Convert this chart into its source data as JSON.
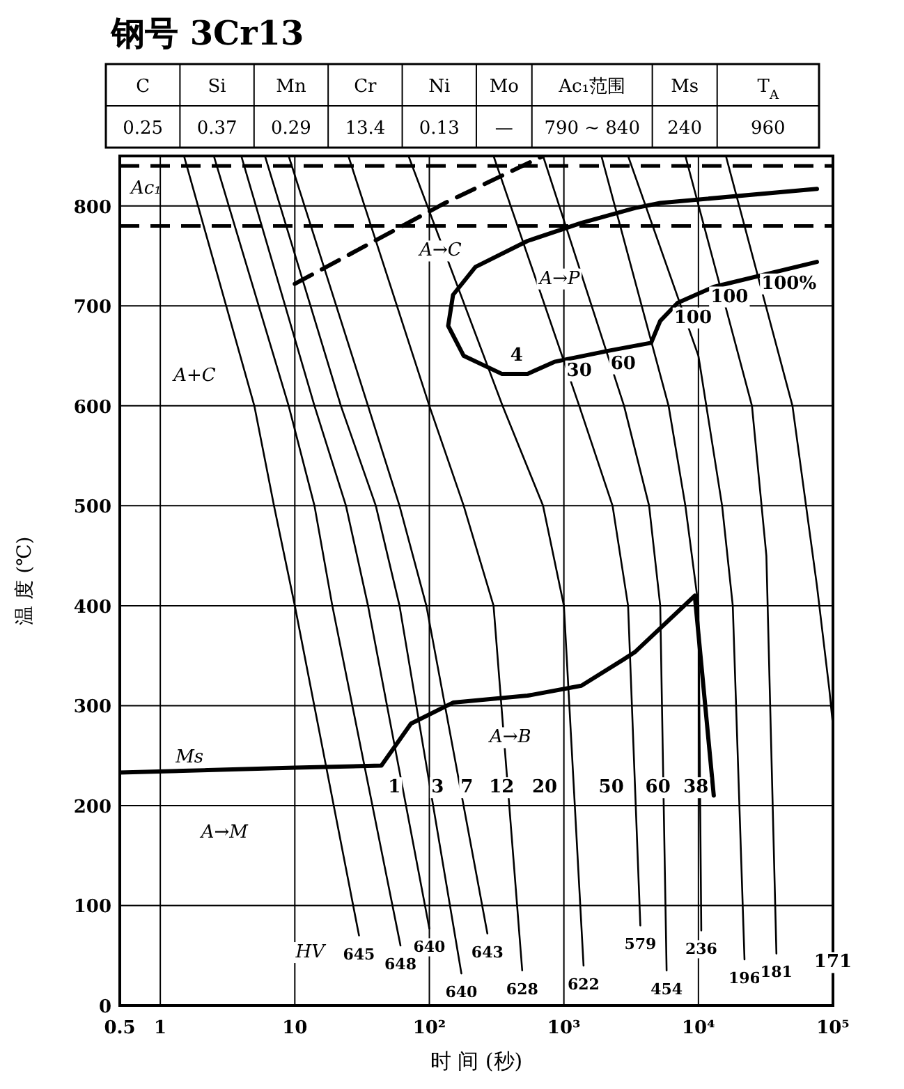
{
  "chart_data": {
    "type": "line",
    "title": "钢号  3Cr13",
    "xlabel": "时 间 (秒)",
    "ylabel": "温 度 (℃)",
    "log": "x",
    "grid": true,
    "marker": "none",
    "xlim": [
      0.5,
      100000
    ],
    "ylim": [
      0,
      850
    ],
    "xticks": [
      0.5,
      1,
      10,
      {
        "value": 100,
        "label": "10²"
      },
      {
        "value": 1000,
        "label": "10³"
      },
      {
        "value": 10000,
        "label": "10⁴"
      },
      {
        "value": 100000,
        "label": "10⁵"
      }
    ],
    "yticks": [
      0,
      100,
      200,
      300,
      400,
      500,
      600,
      700,
      800
    ],
    "ref_lines": [
      {
        "axis": "y",
        "value": 840,
        "label": "Ac₁",
        "line_style": "dashed",
        "color": "#000000"
      },
      {
        "axis": "y",
        "value": 780,
        "line_style": "dashed",
        "color": "#000000"
      }
    ],
    "series": [
      {
        "color": "#000000",
        "x": [
          0.5,
          10,
          44,
          73,
          150,
          537,
          1350,
          2760,
          3400,
          9400,
          13000
        ],
        "values": [
          233,
          238,
          240,
          282,
          303,
          310,
          320,
          346,
          354,
          410,
          210
        ]
      },
      {
        "color": "#000000",
        "x": [
          76000,
          5200,
          3400,
          1350,
          537,
          220,
          150,
          138,
          180,
          345,
          537,
          850,
          2130,
          4450,
          5200,
          7000,
          13000,
          76000
        ],
        "values": [
          817,
          803,
          798,
          783,
          765,
          739,
          711,
          680,
          650,
          632,
          632,
          644,
          655,
          663,
          685,
          703,
          719,
          744
        ]
      },
      {
        "color": "#000000",
        "line_style": "dashed",
        "x": [
          10,
          131,
          700
        ],
        "values": [
          722,
          803,
          850
        ]
      },
      {
        "color": "#000000",
        "x": [
          1.5,
          5,
          7,
          10,
          30
        ],
        "values": [
          850,
          600,
          500,
          400,
          70
        ]
      },
      {
        "color": "#000000",
        "x": [
          2.5,
          9,
          14,
          19,
          61
        ],
        "values": [
          850,
          600,
          500,
          400,
          60
        ]
      },
      {
        "color": "#000000",
        "x": [
          4,
          14,
          24,
          35,
          100
        ],
        "values": [
          850,
          600,
          500,
          400,
          77
        ]
      },
      {
        "color": "#000000",
        "x": [
          6,
          22,
          40,
          60,
          173
        ],
        "values": [
          850,
          600,
          500,
          400,
          32
        ]
      },
      {
        "color": "#000000",
        "x": [
          9,
          35,
          60,
          95,
          270
        ],
        "values": [
          850,
          600,
          500,
          400,
          72
        ]
      },
      {
        "color": "#000000",
        "x": [
          25,
          100,
          180,
          300,
          490
        ],
        "values": [
          850,
          600,
          500,
          400,
          35
        ]
      },
      {
        "color": "#000000",
        "x": [
          70,
          350,
          700,
          1000,
          1400
        ],
        "values": [
          850,
          600,
          500,
          400,
          40
        ]
      },
      {
        "color": "#000000",
        "x": [
          300,
          1300,
          2300,
          3000,
          3700
        ],
        "values": [
          850,
          600,
          500,
          400,
          80
        ]
      },
      {
        "color": "#000000",
        "x": [
          700,
          2800,
          4300,
          5200,
          5800
        ],
        "values": [
          850,
          600,
          500,
          400,
          35
        ]
      },
      {
        "color": "#000000",
        "x": [
          1900,
          6000,
          8000,
          10000,
          10500
        ],
        "values": [
          850,
          600,
          500,
          400,
          75
        ]
      },
      {
        "color": "#000000",
        "x": [
          3000,
          10000,
          15000,
          18000,
          22000
        ],
        "values": [
          850,
          650,
          500,
          400,
          46
        ]
      },
      {
        "color": "#000000",
        "x": [
          8000,
          25000,
          32000,
          38000
        ],
        "values": [
          850,
          600,
          450,
          52
        ]
      },
      {
        "color": "#000000",
        "x": [
          16000,
          50000,
          76000,
          94000,
          100000
        ],
        "values": [
          850,
          600,
          420,
          316,
          280
        ]
      }
    ],
    "annotations": [
      "C",
      "Si",
      "Mn",
      "Cr",
      "Ni",
      "Mo",
      "Ac₁范围",
      "Ms",
      "T$_{A}$",
      "0.25",
      "0.37",
      "0.29",
      "13.4",
      "0.13",
      "—",
      "790 ~ 840",
      "240",
      "960",
      "A→C",
      "A→P",
      "A+C",
      "A→B",
      "Ms",
      "A→M",
      "4",
      "30",
      "60",
      "100",
      "100",
      "100%",
      "1",
      "3",
      "7",
      "12",
      "20",
      "50",
      "60",
      "38",
      "HV",
      "171",
      {
        "text": "645",
        "x": 30,
        "y": 70
      },
      {
        "text": "648",
        "x": 61,
        "y": 60
      },
      {
        "text": "640",
        "x": 100,
        "y": 77
      },
      {
        "text": "640",
        "x": 173,
        "y": 32
      },
      {
        "text": "643",
        "x": 270,
        "y": 72
      },
      {
        "text": "628",
        "x": 490,
        "y": 35
      },
      {
        "text": "622",
        "x": 1400,
        "y": 40
      },
      {
        "text": "579",
        "x": 3700,
        "y": 80
      },
      {
        "text": "454",
        "x": 5800,
        "y": 35
      },
      {
        "text": "236",
        "x": 10500,
        "y": 75
      },
      {
        "text": "196",
        "x": 22000,
        "y": 46
      },
      {
        "text": "181",
        "x": 38000,
        "y": 52
      }
    ]
  }
}
